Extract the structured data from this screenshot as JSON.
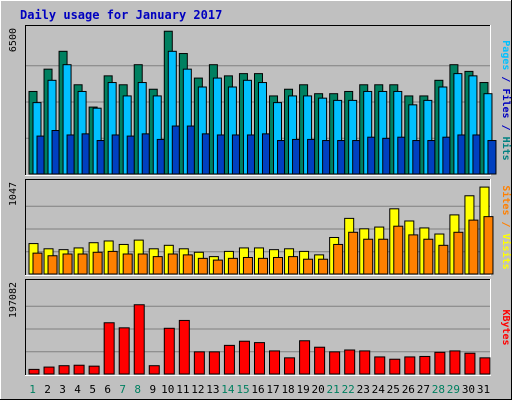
{
  "chart_data": {
    "type": "bar",
    "title": "Daily usage for January 2017",
    "categories": [
      "1",
      "2",
      "3",
      "4",
      "5",
      "6",
      "7",
      "8",
      "9",
      "10",
      "11",
      "12",
      "13",
      "14",
      "15",
      "16",
      "17",
      "18",
      "19",
      "20",
      "21",
      "22",
      "23",
      "24",
      "25",
      "26",
      "27",
      "28",
      "29",
      "30",
      "31"
    ],
    "weekend_days": [
      "1",
      "7",
      "8",
      "14",
      "15",
      "21",
      "22",
      "28",
      "29"
    ],
    "panels": [
      {
        "id": "hits-files-pages",
        "ylabel_top_tick": "6500",
        "ymax": 6500,
        "label_parts": [
          {
            "text": "Pages",
            "color": "#00c0ff"
          },
          {
            "text": " / ",
            "color": "#0000c0"
          },
          {
            "text": "Files",
            "color": "#0000c0"
          },
          {
            "text": " / ",
            "color": "#0000c0"
          },
          {
            "text": "Hits",
            "color": "#008080"
          }
        ],
        "series": [
          {
            "name": "Hits",
            "color": "#008060",
            "values": [
              3700,
              4700,
              5500,
              4000,
              3000,
              4400,
              4000,
              4900,
              3800,
              6400,
              5400,
              4300,
              4900,
              4400,
              4500,
              4500,
              3500,
              3800,
              4000,
              3600,
              3600,
              3700,
              4000,
              4000,
              4000,
              3500,
              3500,
              4200,
              4900,
              4600,
              4100
            ]
          },
          {
            "name": "Files",
            "color": "#00c0ff",
            "values": [
              3200,
              4200,
              4900,
              3700,
              2950,
              4100,
              3500,
              4100,
              3500,
              5500,
              4700,
              3900,
              4300,
              3900,
              4200,
              4100,
              3200,
              3500,
              3500,
              3400,
              3300,
              3300,
              3700,
              3700,
              3700,
              3100,
              3300,
              3900,
              4500,
              4400,
              3600
            ]
          },
          {
            "name": "Pages",
            "color": "#0040c0",
            "values": [
              1700,
              1950,
              1750,
              1800,
              1500,
              1750,
              1700,
              1800,
              1550,
              2150,
              2150,
              1800,
              1750,
              1750,
              1750,
              1800,
              1500,
              1550,
              1550,
              1500,
              1500,
              1500,
              1650,
              1600,
              1650,
              1500,
              1500,
              1650,
              1750,
              1750,
              1500
            ]
          }
        ]
      },
      {
        "id": "visits-sites",
        "ylabel_top_tick": "1047",
        "ymax": 1047,
        "label_parts": [
          {
            "text": "Sites",
            "color": "#ff8000"
          },
          {
            "text": " / ",
            "color": "#ff8000"
          },
          {
            "text": "Visits",
            "color": "#ffff00"
          }
        ],
        "series": [
          {
            "name": "Visits",
            "color": "#ffff00",
            "values": [
              350,
              290,
              280,
              300,
              360,
              380,
              340,
              390,
              290,
              330,
              290,
              250,
              200,
              260,
              300,
              300,
              280,
              290,
              260,
              220,
              420,
              640,
              520,
              540,
              750,
              610,
              530,
              460,
              680,
              900,
              1000
            ]
          },
          {
            "name": "Sites",
            "color": "#ff8000",
            "values": [
              240,
              210,
              230,
              230,
              250,
              260,
              230,
              230,
              200,
              230,
              220,
              180,
              160,
              180,
              190,
              180,
              190,
              200,
              170,
              170,
              340,
              480,
              400,
              400,
              550,
              450,
              400,
              330,
              480,
              620,
              660
            ]
          }
        ]
      },
      {
        "id": "kbytes",
        "ylabel_top_tick": "197082",
        "ymax": 197082,
        "label_parts": [
          {
            "text": "KBytes",
            "color": "#ff0000"
          }
        ],
        "series": [
          {
            "name": "KBytes",
            "color": "#ff0000",
            "values": [
              10000,
              15000,
              18000,
              19000,
              17000,
              111000,
              100000,
              150000,
              18000,
              99000,
              116000,
              48000,
              48000,
              62000,
              71000,
              68000,
              50000,
              35000,
              72000,
              58000,
              48000,
              52000,
              50000,
              37000,
              32000,
              37000,
              38000,
              47000,
              50000,
              45000,
              35000
            ]
          }
        ]
      }
    ]
  }
}
